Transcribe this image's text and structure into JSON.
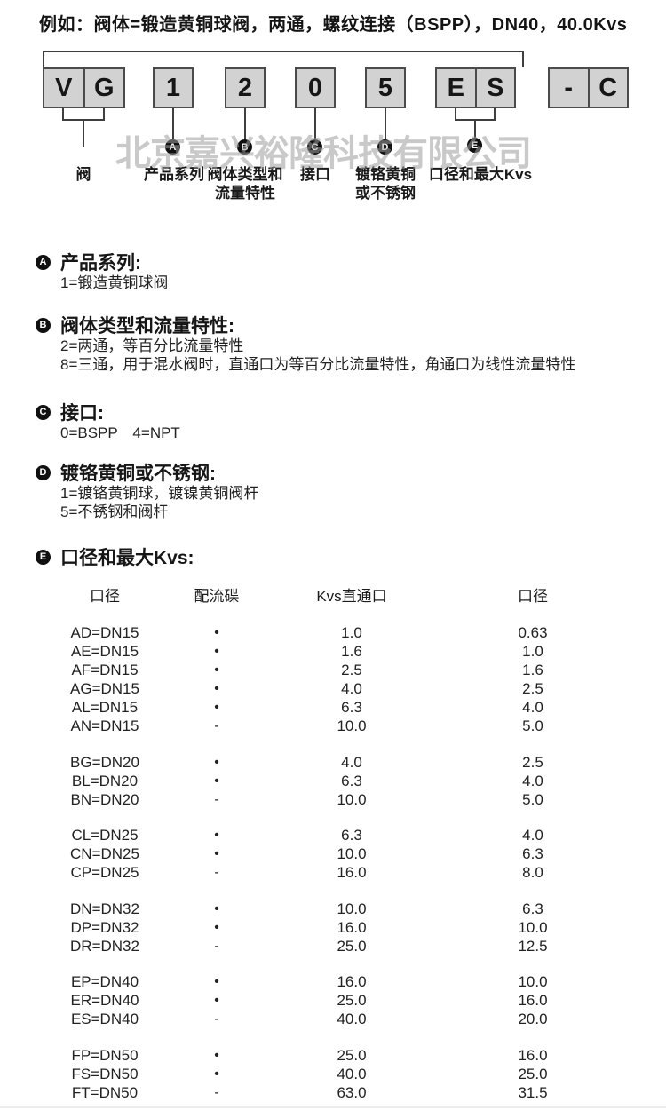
{
  "example_line": "例如：阀体=锻造黄铜球阀，两通，螺纹连接（BSPP），DN40，40.0Kvs",
  "watermark": "北京嘉兴裕隆科技有限公司",
  "diagram": {
    "boxes": [
      {
        "cells": [
          "V",
          "G"
        ]
      },
      {
        "cells": [
          "1"
        ]
      },
      {
        "cells": [
          "2"
        ]
      },
      {
        "cells": [
          "0"
        ]
      },
      {
        "cells": [
          "5"
        ]
      },
      {
        "cells": [
          "E",
          "S"
        ]
      },
      {
        "cells": [
          "-",
          "C"
        ]
      }
    ],
    "callouts": [
      {
        "letter": "",
        "lines": [
          "阀"
        ]
      },
      {
        "letter": "A",
        "lines": [
          "产品系列"
        ]
      },
      {
        "letter": "B",
        "lines": [
          "阀体类型和",
          "流量特性"
        ]
      },
      {
        "letter": "C",
        "lines": [
          "接口"
        ]
      },
      {
        "letter": "D",
        "lines": [
          "镀铬黄铜",
          "或不锈钢"
        ]
      },
      {
        "letter": "E",
        "lines": [
          "口径和最大Kvs"
        ]
      }
    ]
  },
  "sections": [
    {
      "letter": "A",
      "title": "产品系列:",
      "lines": [
        "1=锻造黄铜球阀"
      ]
    },
    {
      "letter": "B",
      "title": "阀体类型和流量特性:",
      "lines": [
        "2=两通，等百分比流量特性",
        "8=三通，用于混水阀时，直通口为等百分比流量特性，角通口为线性流量特性"
      ]
    },
    {
      "letter": "C",
      "title": "接口:",
      "lines": [
        "0=BSPP　4=NPT"
      ]
    },
    {
      "letter": "D",
      "title": "镀铬黄铜或不锈钢:",
      "lines": [
        "1=镀铬黄铜球，镀镍黄铜阀杆",
        "5=不锈钢和阀杆"
      ]
    },
    {
      "letter": "E",
      "title": "口径和最大Kvs:",
      "lines": []
    }
  ],
  "table": {
    "headers": [
      "口径",
      "配流碟",
      "Kvs直通口",
      "口径"
    ],
    "groups": [
      {
        "rows": [
          [
            "AD=DN15",
            "•",
            "1.0",
            "0.63"
          ],
          [
            "AE=DN15",
            "•",
            "1.6",
            "1.0"
          ],
          [
            "AF=DN15",
            "•",
            "2.5",
            "1.6"
          ],
          [
            "AG=DN15",
            "•",
            "4.0",
            "2.5"
          ],
          [
            "AL=DN15",
            "•",
            "6.3",
            "4.0"
          ],
          [
            "AN=DN15",
            "-",
            "10.0",
            "5.0"
          ]
        ]
      },
      {
        "rows": [
          [
            "BG=DN20",
            "•",
            "4.0",
            "2.5"
          ],
          [
            "BL=DN20",
            "•",
            "6.3",
            "4.0"
          ],
          [
            "BN=DN20",
            "-",
            "10.0",
            "5.0"
          ]
        ]
      },
      {
        "rows": [
          [
            "CL=DN25",
            "•",
            "6.3",
            "4.0"
          ],
          [
            "CN=DN25",
            "•",
            "10.0",
            "6.3"
          ],
          [
            "CP=DN25",
            "-",
            "16.0",
            "8.0"
          ]
        ]
      },
      {
        "rows": [
          [
            "DN=DN32",
            "•",
            "10.0",
            "6.3"
          ],
          [
            "DP=DN32",
            "•",
            "16.0",
            "10.0"
          ],
          [
            "DR=DN32",
            "-",
            "25.0",
            "12.5"
          ]
        ]
      },
      {
        "rows": [
          [
            "EP=DN40",
            "•",
            "16.0",
            "10.0"
          ],
          [
            "ER=DN40",
            "•",
            "25.0",
            "16.0"
          ],
          [
            "ES=DN40",
            "-",
            "40.0",
            "20.0"
          ]
        ]
      },
      {
        "rows": [
          [
            "FP=DN50",
            "•",
            "25.0",
            "16.0"
          ],
          [
            "FS=DN50",
            "•",
            "40.0",
            "25.0"
          ],
          [
            "FT=DN50",
            "-",
            "63.0",
            "31.5"
          ]
        ]
      }
    ]
  },
  "colors": {
    "box_fill": "#d2d2d2",
    "box_border": "#4b4b4b",
    "line": "#3f3f3f",
    "text": "#1e1e1e",
    "watermark": "#9e9e9e"
  }
}
